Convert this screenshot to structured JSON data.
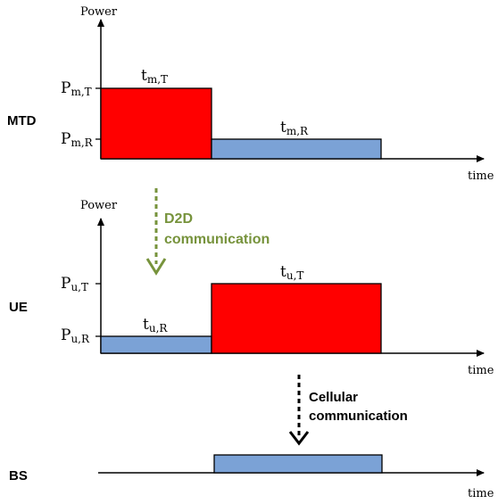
{
  "colors": {
    "transmit": "#ff0000",
    "receive": "#7ba2d6",
    "d2d_arrow": "#77933c",
    "stroke": "#000000"
  },
  "mtd": {
    "label": "MTD",
    "axis_y_label": "Power",
    "axis_x_label": "time",
    "p_transmit": {
      "base": "P",
      "sub": "m,T"
    },
    "p_receive": {
      "base": "P",
      "sub": "m,R"
    },
    "t_transmit": {
      "base": "t",
      "sub": "m,T"
    },
    "t_receive": {
      "base": "t",
      "sub": "m,R"
    }
  },
  "d2d": {
    "line1": "D2D",
    "line2": "communication"
  },
  "ue": {
    "label": "UE",
    "axis_y_label": "Power",
    "axis_x_label": "time",
    "p_transmit": {
      "base": "P",
      "sub": "u,T"
    },
    "p_receive": {
      "base": "P",
      "sub": "u,R"
    },
    "t_transmit": {
      "base": "t",
      "sub": "u,T"
    },
    "t_receive": {
      "base": "t",
      "sub": "u,R"
    }
  },
  "cellular": {
    "line1": "Cellular",
    "line2": "communication"
  },
  "bs": {
    "label": "BS",
    "axis_x_label": "time"
  }
}
